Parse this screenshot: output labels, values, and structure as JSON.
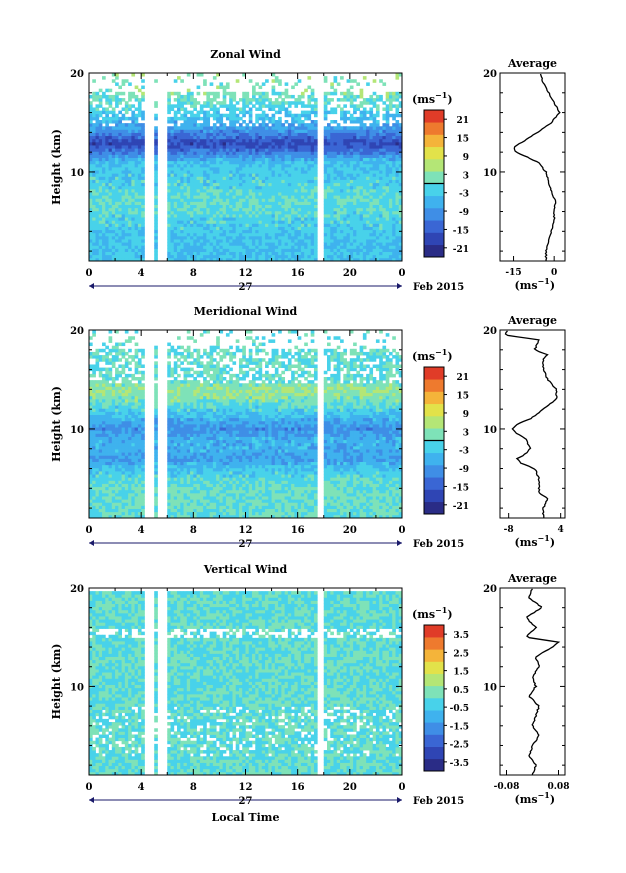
{
  "chart_data": [
    {
      "type": "heatmap",
      "title": "Zonal Wind",
      "ylabel": "Height (km)",
      "ylim": [
        1,
        20
      ],
      "yticks": [
        "10",
        "20"
      ],
      "xlim": [
        0,
        24
      ],
      "xticks": [
        "0",
        "4",
        "8",
        "12",
        "16",
        "20",
        "0"
      ],
      "date_label": "27",
      "date_suffix": "Feb 2015",
      "colorbar": {
        "unit_base": "(ms",
        "unit_exp": "−1",
        "unit_close": ")",
        "range": [
          -24,
          24
        ],
        "ticks": [
          "21",
          "15",
          "9",
          "3",
          "-3",
          "-9",
          "-15",
          "-21"
        ],
        "tick_values": [
          21,
          15,
          9,
          3,
          -3,
          -9,
          -15,
          -21
        ],
        "contour_at": 0
      },
      "gaps_hours": [
        [
          4.3,
          4.9
        ],
        [
          5.3,
          5.9
        ],
        [
          17.6,
          17.9
        ]
      ],
      "profile_by_height": [
        {
          "h": 1,
          "v": -4
        },
        {
          "h": 3,
          "v": -4
        },
        {
          "h": 5,
          "v": -2
        },
        {
          "h": 7,
          "v": 0
        },
        {
          "h": 9,
          "v": -2
        },
        {
          "h": 11,
          "v": -4
        },
        {
          "h": 12,
          "v": -12
        },
        {
          "h": 13,
          "v": -18
        },
        {
          "h": 14,
          "v": -10
        },
        {
          "h": 15,
          "v": -6
        },
        {
          "h": 17,
          "v": 0
        },
        {
          "h": 18,
          "v": 2
        },
        {
          "h": 20,
          "v": 2
        }
      ],
      "average": {
        "title": "Average",
        "xticks": [
          "-15",
          "0"
        ],
        "xtick_values": [
          -15,
          0
        ],
        "xlim": [
          -20,
          4
        ],
        "xlabel_base": "(ms",
        "xlabel_exp": "−1",
        "xlabel_close": ")",
        "yticks": [
          "10",
          "20"
        ],
        "profile": [
          {
            "h": 1,
            "v": -3
          },
          {
            "h": 2,
            "v": -3
          },
          {
            "h": 3,
            "v": -2
          },
          {
            "h": 4,
            "v": -1
          },
          {
            "h": 5,
            "v": 0
          },
          {
            "h": 6,
            "v": 0
          },
          {
            "h": 7,
            "v": 0.5
          },
          {
            "h": 8,
            "v": -1
          },
          {
            "h": 9,
            "v": -2
          },
          {
            "h": 10,
            "v": -3
          },
          {
            "h": 11,
            "v": -6
          },
          {
            "h": 12,
            "v": -14
          },
          {
            "h": 12.5,
            "v": -15
          },
          {
            "h": 13,
            "v": -12
          },
          {
            "h": 14,
            "v": -6
          },
          {
            "h": 15,
            "v": -1
          },
          {
            "h": 16,
            "v": 2
          },
          {
            "h": 16.5,
            "v": 1
          },
          {
            "h": 17,
            "v": 0
          },
          {
            "h": 18,
            "v": -2
          },
          {
            "h": 19,
            "v": -4
          },
          {
            "h": 20,
            "v": -5
          }
        ]
      }
    },
    {
      "type": "heatmap",
      "title": "Meridional Wind",
      "ylabel": "Height (km)",
      "ylim": [
        1,
        20
      ],
      "yticks": [
        "10",
        "20"
      ],
      "xlim": [
        0,
        24
      ],
      "xticks": [
        "0",
        "4",
        "8",
        "12",
        "16",
        "20",
        "0"
      ],
      "date_label": "27",
      "date_suffix": "Feb 2015",
      "colorbar": {
        "unit_base": "(ms",
        "unit_exp": "−1",
        "unit_close": ")",
        "range": [
          -24,
          24
        ],
        "ticks": [
          "21",
          "15",
          "9",
          "3",
          "-3",
          "-9",
          "-15",
          "-21"
        ],
        "tick_values": [
          21,
          15,
          9,
          3,
          -3,
          -9,
          -15,
          -21
        ],
        "contour_at": 0
      },
      "gaps_hours": [
        [
          4.3,
          4.9
        ],
        [
          5.3,
          5.9
        ],
        [
          17.6,
          17.9
        ]
      ],
      "profile_by_height": [
        {
          "h": 1,
          "v": 0
        },
        {
          "h": 3,
          "v": 1
        },
        {
          "h": 5,
          "v": -1
        },
        {
          "h": 6,
          "v": -4
        },
        {
          "h": 7,
          "v": -8
        },
        {
          "h": 8,
          "v": -6
        },
        {
          "h": 9,
          "v": -6
        },
        {
          "h": 10,
          "v": -10
        },
        {
          "h": 11,
          "v": -6
        },
        {
          "h": 12,
          "v": -2
        },
        {
          "h": 13,
          "v": 2
        },
        {
          "h": 14,
          "v": 4
        },
        {
          "h": 15,
          "v": 0
        },
        {
          "h": 17,
          "v": 0
        },
        {
          "h": 20,
          "v": 0
        }
      ],
      "average": {
        "title": "Average",
        "xticks": [
          "-8",
          "4"
        ],
        "xtick_values": [
          -8,
          4
        ],
        "xlim": [
          -10,
          5
        ],
        "xlabel_base": "(ms",
        "xlabel_exp": "−1",
        "xlabel_close": ")",
        "yticks": [
          "10",
          "20"
        ],
        "profile": [
          {
            "h": 1,
            "v": 0
          },
          {
            "h": 2,
            "v": 0
          },
          {
            "h": 3,
            "v": 1
          },
          {
            "h": 3.5,
            "v": -1
          },
          {
            "h": 4,
            "v": -1
          },
          {
            "h": 5,
            "v": -1
          },
          {
            "h": 6,
            "v": -2
          },
          {
            "h": 6.5,
            "v": -5
          },
          {
            "h": 7,
            "v": -6
          },
          {
            "h": 7.5,
            "v": -4
          },
          {
            "h": 8,
            "v": -3
          },
          {
            "h": 9,
            "v": -4
          },
          {
            "h": 9.5,
            "v": -6
          },
          {
            "h": 10,
            "v": -7
          },
          {
            "h": 10.5,
            "v": -6
          },
          {
            "h": 11,
            "v": -3
          },
          {
            "h": 12,
            "v": 0
          },
          {
            "h": 13,
            "v": 3
          },
          {
            "h": 14,
            "v": 3
          },
          {
            "h": 15,
            "v": 1
          },
          {
            "h": 16,
            "v": 0
          },
          {
            "h": 17,
            "v": 0
          },
          {
            "h": 17.5,
            "v": 1
          },
          {
            "h": 18,
            "v": -2
          },
          {
            "h": 19,
            "v": -1
          },
          {
            "h": 19.5,
            "v": -9
          },
          {
            "h": 20,
            "v": -8
          }
        ]
      }
    },
    {
      "type": "heatmap",
      "title": "Vertical Wind",
      "ylabel": "Height (km)",
      "ylim": [
        1,
        20
      ],
      "yticks": [
        "10",
        "20"
      ],
      "xlim": [
        0,
        24
      ],
      "xticks": [
        "0",
        "4",
        "8",
        "12",
        "16",
        "20",
        "0"
      ],
      "date_label": "27",
      "date_suffix": "Feb 2015",
      "xlabel": "Local Time",
      "colorbar": {
        "unit_base": "(ms",
        "unit_exp": "−1",
        "unit_close": ")",
        "range": [
          -4,
          4
        ],
        "ticks": [
          "3.5",
          "2.5",
          "1.5",
          "0.5",
          "-0.5",
          "-1.5",
          "-2.5",
          "-3.5"
        ],
        "tick_values": [
          3.5,
          2.5,
          1.5,
          0.5,
          -0.5,
          -1.5,
          -2.5,
          -3.5
        ]
      },
      "gaps_hours": [
        [
          4.3,
          4.9
        ],
        [
          5.3,
          5.9
        ],
        [
          17.6,
          17.9
        ]
      ],
      "average": {
        "title": "Average",
        "xticks": [
          "-0.08",
          "0.08"
        ],
        "xtick_values": [
          -0.08,
          0.08
        ],
        "xlim": [
          -0.1,
          0.1
        ],
        "xlabel_base": "(ms",
        "xlabel_exp": "−1",
        "xlabel_close": ")",
        "yticks": [
          "10",
          "20"
        ],
        "profile": [
          {
            "h": 1,
            "v": 0.0
          },
          {
            "h": 2,
            "v": 0.01
          },
          {
            "h": 3,
            "v": -0.01
          },
          {
            "h": 4,
            "v": 0.0
          },
          {
            "h": 5,
            "v": 0.02
          },
          {
            "h": 6,
            "v": 0.0
          },
          {
            "h": 7,
            "v": 0.01
          },
          {
            "h": 8,
            "v": 0.02
          },
          {
            "h": 9,
            "v": -0.01
          },
          {
            "h": 10,
            "v": 0.01
          },
          {
            "h": 11,
            "v": 0.0
          },
          {
            "h": 12,
            "v": 0.02
          },
          {
            "h": 13,
            "v": 0.01
          },
          {
            "h": 14,
            "v": 0.06
          },
          {
            "h": 14.5,
            "v": 0.08
          },
          {
            "h": 15,
            "v": -0.02
          },
          {
            "h": 16,
            "v": 0.01
          },
          {
            "h": 17,
            "v": -0.02
          },
          {
            "h": 18,
            "v": 0.03
          },
          {
            "h": 19,
            "v": -0.01
          },
          {
            "h": 20,
            "v": 0.0
          }
        ]
      }
    }
  ]
}
